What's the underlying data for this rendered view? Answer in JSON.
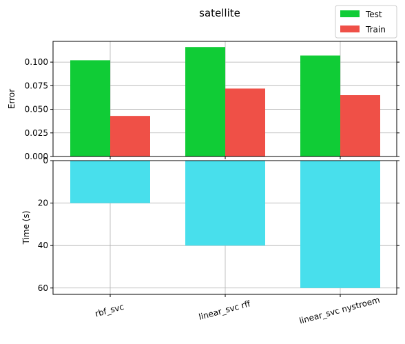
{
  "chart_data": [
    {
      "type": "bar",
      "title": "satellite",
      "ylabel": "Error",
      "categories": [
        "rbf_svc",
        "linear_svc rff",
        "linear_svc nystroem"
      ],
      "series": [
        {
          "name": "Test",
          "values": [
            0.102,
            0.116,
            0.107
          ],
          "color": "#10cc36"
        },
        {
          "name": "Train",
          "values": [
            0.043,
            0.072,
            0.065
          ],
          "color": "#ef5047"
        }
      ],
      "ylim": [
        0,
        0.122
      ],
      "yticks": [
        "0.000",
        "0.025",
        "0.050",
        "0.075",
        "0.100"
      ],
      "grid": true,
      "legend": "top-right"
    },
    {
      "type": "bar",
      "ylabel": "Time (s)",
      "categories": [
        "rbf_svc",
        "linear_svc rff",
        "linear_svc nystroem"
      ],
      "values": [
        20,
        40,
        60
      ],
      "color": "#48dfec",
      "ylim": [
        0,
        63
      ],
      "y_inverted": true,
      "yticks": [
        "0",
        "20",
        "40",
        "60"
      ],
      "grid": true
    }
  ]
}
